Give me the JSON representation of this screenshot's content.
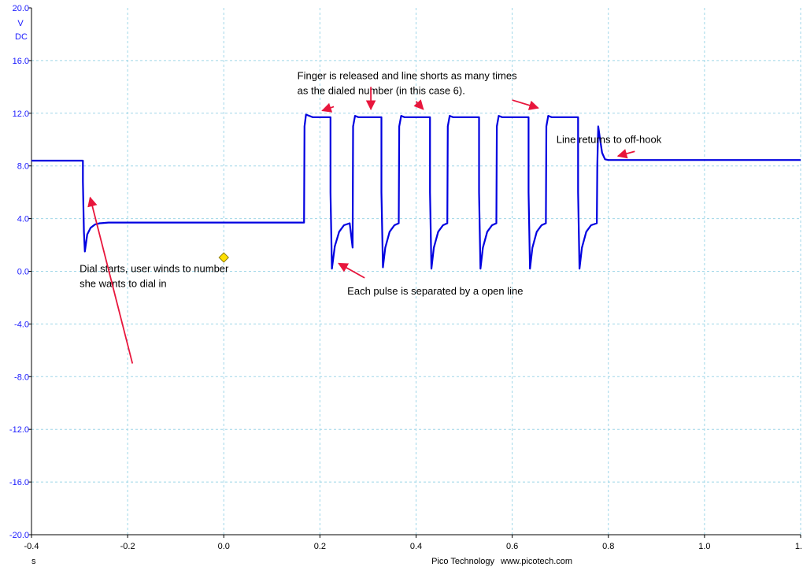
{
  "chart_data": {
    "type": "line",
    "y_unit": "V",
    "y_coupling": "DC",
    "x_unit": "s",
    "xlim": [
      -0.4,
      1.2
    ],
    "ylim": [
      -20.0,
      20.0
    ],
    "grid": true,
    "x_ticks": [
      "-0.4",
      "-0.2",
      "0.0",
      "0.2",
      "0.4",
      "0.6",
      "0.8",
      "1.0",
      "1."
    ],
    "y_ticks": [
      "20.0",
      "16.0",
      "12.0",
      "8.0",
      "4.0",
      "0.0",
      "-4.0",
      "-8.0",
      "-12.0",
      "-16.0",
      "-20.0"
    ],
    "series": [
      {
        "color": "#0000e0",
        "points": [
          [
            -0.4,
            8.4
          ],
          [
            -0.293,
            8.4
          ],
          [
            -0.293,
            6.8
          ],
          [
            -0.291,
            3.0
          ],
          [
            -0.289,
            1.5
          ],
          [
            -0.284,
            2.8
          ],
          [
            -0.277,
            3.3
          ],
          [
            -0.268,
            3.55
          ],
          [
            -0.258,
            3.65
          ],
          [
            -0.24,
            3.7
          ],
          [
            0.167,
            3.7
          ],
          [
            0.168,
            11.0
          ],
          [
            0.171,
            11.9
          ],
          [
            0.178,
            11.8
          ],
          [
            0.185,
            11.7
          ],
          [
            0.222,
            11.7
          ],
          [
            0.222,
            6.0
          ],
          [
            0.225,
            0.2
          ],
          [
            0.231,
            1.9
          ],
          [
            0.24,
            3.0
          ],
          [
            0.25,
            3.5
          ],
          [
            0.262,
            3.65
          ],
          [
            0.268,
            1.8
          ],
          [
            0.269,
            11.0
          ],
          [
            0.273,
            11.8
          ],
          [
            0.28,
            11.7
          ],
          [
            0.328,
            11.7
          ],
          [
            0.328,
            6.0
          ],
          [
            0.331,
            0.3
          ],
          [
            0.336,
            1.8
          ],
          [
            0.345,
            3.0
          ],
          [
            0.355,
            3.5
          ],
          [
            0.364,
            3.65
          ],
          [
            0.365,
            11.0
          ],
          [
            0.369,
            11.8
          ],
          [
            0.376,
            11.7
          ],
          [
            0.429,
            11.7
          ],
          [
            0.429,
            6.0
          ],
          [
            0.432,
            0.2
          ],
          [
            0.437,
            1.8
          ],
          [
            0.446,
            3.0
          ],
          [
            0.456,
            3.5
          ],
          [
            0.465,
            3.65
          ],
          [
            0.466,
            11.0
          ],
          [
            0.47,
            11.8
          ],
          [
            0.477,
            11.7
          ],
          [
            0.531,
            11.7
          ],
          [
            0.531,
            6.0
          ],
          [
            0.534,
            0.2
          ],
          [
            0.539,
            1.8
          ],
          [
            0.548,
            3.0
          ],
          [
            0.558,
            3.5
          ],
          [
            0.567,
            3.65
          ],
          [
            0.568,
            11.0
          ],
          [
            0.572,
            11.8
          ],
          [
            0.579,
            11.7
          ],
          [
            0.634,
            11.7
          ],
          [
            0.634,
            6.0
          ],
          [
            0.637,
            0.2
          ],
          [
            0.642,
            1.8
          ],
          [
            0.651,
            3.0
          ],
          [
            0.661,
            3.5
          ],
          [
            0.67,
            3.65
          ],
          [
            0.671,
            11.0
          ],
          [
            0.675,
            11.8
          ],
          [
            0.682,
            11.7
          ],
          [
            0.737,
            11.7
          ],
          [
            0.737,
            6.0
          ],
          [
            0.74,
            0.2
          ],
          [
            0.745,
            1.8
          ],
          [
            0.754,
            3.0
          ],
          [
            0.764,
            3.5
          ],
          [
            0.776,
            3.65
          ],
          [
            0.777,
            8.0
          ],
          [
            0.779,
            11.0
          ],
          [
            0.782,
            10.2
          ],
          [
            0.787,
            9.0
          ],
          [
            0.793,
            8.5
          ],
          [
            0.8,
            8.45
          ],
          [
            1.2,
            8.45
          ]
        ]
      }
    ],
    "annotations": [
      {
        "lines": [
          "Dial starts, user winds to number",
          "she wants to dial in"
        ],
        "text_at": [
          -0.3,
          -0.05
        ],
        "arrows": [
          {
            "from": [
              -0.19,
              -7.0
            ],
            "to": [
              -0.278,
              5.6
            ]
          }
        ]
      },
      {
        "lines": [
          "Each pulse is separated by a open line"
        ],
        "text_at": [
          0.257,
          -1.75
        ],
        "arrows": [
          {
            "from": [
              0.293,
              -0.5
            ],
            "to": [
              0.239,
              0.6
            ]
          }
        ]
      },
      {
        "lines": [
          "Finger is released and line shorts as many times",
          "as the dialed number (in this case 6)."
        ],
        "text_at": [
          0.153,
          14.6
        ],
        "arrows": [
          {
            "from": [
              0.229,
              12.5
            ],
            "to": [
              0.205,
              12.2
            ]
          },
          {
            "from": [
              0.306,
              14.0
            ],
            "to": [
              0.306,
              12.3
            ]
          },
          {
            "from": [
              0.4,
              12.9
            ],
            "to": [
              0.415,
              12.3
            ]
          },
          {
            "from": [
              0.6,
              13.0
            ],
            "to": [
              0.654,
              12.4
            ]
          }
        ]
      },
      {
        "lines": [
          "Line returns to off-hook"
        ],
        "text_at": [
          0.692,
          9.75
        ],
        "arrows": [
          {
            "from": [
              0.855,
              9.1
            ],
            "to": [
              0.82,
              8.75
            ]
          }
        ]
      }
    ],
    "trigger_marker": {
      "x": 0.0,
      "y": 1.05,
      "color": "#ffe000"
    }
  },
  "footer": {
    "company": "Pico Technology",
    "website": "www.picotech.com"
  }
}
